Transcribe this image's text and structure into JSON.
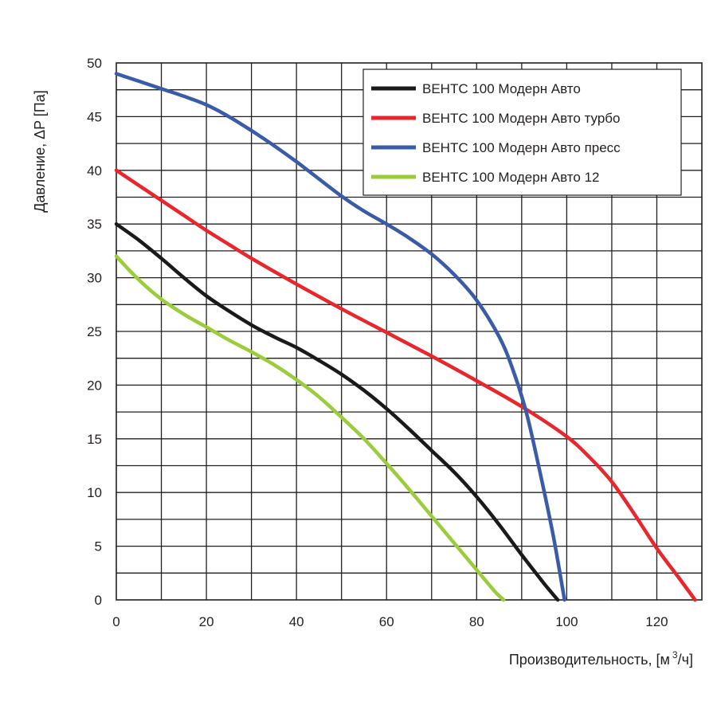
{
  "chart_data": {
    "type": "line",
    "xlabel": "Производительность, [м",
    "xlabel_sup": "3",
    "xlabel_tail": "/ч]",
    "ylabel": "Давление, ΔP [Па]",
    "xlim": [
      0,
      130
    ],
    "ylim": [
      0,
      50
    ],
    "x_ticks": [
      0,
      20,
      40,
      60,
      80,
      100,
      120
    ],
    "y_ticks": [
      0,
      5,
      10,
      15,
      20,
      25,
      30,
      35,
      40,
      45,
      50
    ],
    "x_grid_step": 10,
    "y_grid_step": 2.5,
    "grid": true,
    "legend_position": "top-right",
    "series": [
      {
        "name": "ВЕНТС 100 Модерн Авто",
        "color": "#1a1a1a",
        "points": [
          [
            0,
            35
          ],
          [
            5,
            33.5
          ],
          [
            10,
            31.8
          ],
          [
            15,
            30
          ],
          [
            20,
            28.3
          ],
          [
            25,
            26.9
          ],
          [
            30,
            25.6
          ],
          [
            35,
            24.5
          ],
          [
            40,
            23.5
          ],
          [
            45,
            22.3
          ],
          [
            50,
            21
          ],
          [
            55,
            19.5
          ],
          [
            60,
            17.8
          ],
          [
            65,
            15.9
          ],
          [
            70,
            13.9
          ],
          [
            75,
            11.9
          ],
          [
            80,
            9.6
          ],
          [
            85,
            7
          ],
          [
            90,
            4.2
          ],
          [
            95,
            1.5
          ],
          [
            98,
            0
          ]
        ]
      },
      {
        "name": "ВЕНТС 100 Модерн Авто турбо",
        "color": "#e8262c",
        "points": [
          [
            0,
            40
          ],
          [
            5,
            38.6
          ],
          [
            10,
            37.2
          ],
          [
            15,
            35.8
          ],
          [
            20,
            34.4
          ],
          [
            25,
            33.1
          ],
          [
            30,
            31.8
          ],
          [
            40,
            29.4
          ],
          [
            50,
            27.1
          ],
          [
            60,
            24.9
          ],
          [
            70,
            22.7
          ],
          [
            80,
            20.4
          ],
          [
            90,
            18
          ],
          [
            100,
            15.2
          ],
          [
            105,
            13.3
          ],
          [
            110,
            11
          ],
          [
            115,
            8
          ],
          [
            120,
            4.8
          ],
          [
            125,
            2
          ],
          [
            128.5,
            0
          ]
        ]
      },
      {
        "name": "ВЕНТС 100 Модерн Авто пресс",
        "color": "#3a5ba8",
        "points": [
          [
            0,
            49
          ],
          [
            5,
            48.3
          ],
          [
            10,
            47.6
          ],
          [
            15,
            46.9
          ],
          [
            20,
            46.1
          ],
          [
            25,
            45
          ],
          [
            30,
            43.7
          ],
          [
            35,
            42.3
          ],
          [
            40,
            40.8
          ],
          [
            45,
            39.2
          ],
          [
            50,
            37.6
          ],
          [
            55,
            36.2
          ],
          [
            60,
            35
          ],
          [
            65,
            33.7
          ],
          [
            70,
            32.2
          ],
          [
            75,
            30.3
          ],
          [
            80,
            27.9
          ],
          [
            85,
            24.5
          ],
          [
            88,
            21.5
          ],
          [
            91,
            17.5
          ],
          [
            94,
            12
          ],
          [
            97,
            6
          ],
          [
            99.5,
            0
          ]
        ]
      },
      {
        "name": "ВЕНТС 100 Модерн Авто 12",
        "color": "#9acc3c",
        "points": [
          [
            0,
            32
          ],
          [
            5,
            29.8
          ],
          [
            10,
            28
          ],
          [
            15,
            26.6
          ],
          [
            20,
            25.4
          ],
          [
            25,
            24.2
          ],
          [
            30,
            23.1
          ],
          [
            35,
            21.9
          ],
          [
            40,
            20.5
          ],
          [
            45,
            18.9
          ],
          [
            50,
            17
          ],
          [
            55,
            15
          ],
          [
            60,
            12.7
          ],
          [
            65,
            10.3
          ],
          [
            70,
            7.8
          ],
          [
            75,
            5.3
          ],
          [
            80,
            2.8
          ],
          [
            84,
            0.8
          ],
          [
            86,
            0
          ]
        ]
      }
    ]
  }
}
